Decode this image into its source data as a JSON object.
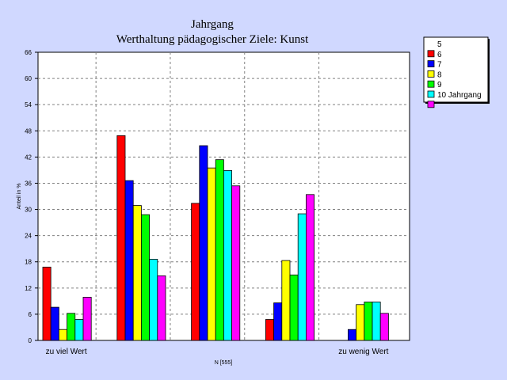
{
  "chart_data": {
    "type": "bar",
    "title": "Jahrgang",
    "subtitle": "Werthaltung pädagogischer Ziele: Kunst",
    "ylabel": "Anteil in %",
    "xlabel": "N [555]",
    "ylim": [
      0,
      66
    ],
    "yticks": [
      0,
      6,
      12,
      18,
      24,
      30,
      36,
      42,
      48,
      54,
      60,
      66
    ],
    "grid": true,
    "legend_position": "top-right",
    "categories": [
      "zu viel Wert",
      "",
      "",
      "",
      "zu wenig Wert"
    ],
    "series": [
      {
        "name": "5",
        "color": "#ffffff",
        "values": [
          0,
          0,
          0,
          0,
          0
        ]
      },
      {
        "name": "6",
        "color": "#ff0000",
        "values": [
          16.8,
          46.9,
          31.4,
          4.8,
          0
        ]
      },
      {
        "name": "7",
        "color": "#0000ff",
        "values": [
          7.6,
          36.6,
          44.6,
          8.6,
          2.5
        ]
      },
      {
        "name": "8",
        "color": "#ffff00",
        "values": [
          2.5,
          30.9,
          39.5,
          18.3,
          8.2
        ]
      },
      {
        "name": "9",
        "color": "#00ff00",
        "values": [
          6.2,
          28.8,
          41.4,
          15.0,
          8.8
        ]
      },
      {
        "name": "10 Jahrgang",
        "color": "#00ffff",
        "values": [
          4.8,
          18.6,
          38.9,
          29.0,
          8.8
        ]
      },
      {
        "name": "",
        "color": "#ff00ff",
        "values": [
          9.9,
          14.8,
          35.4,
          33.4,
          6.2
        ]
      }
    ]
  }
}
